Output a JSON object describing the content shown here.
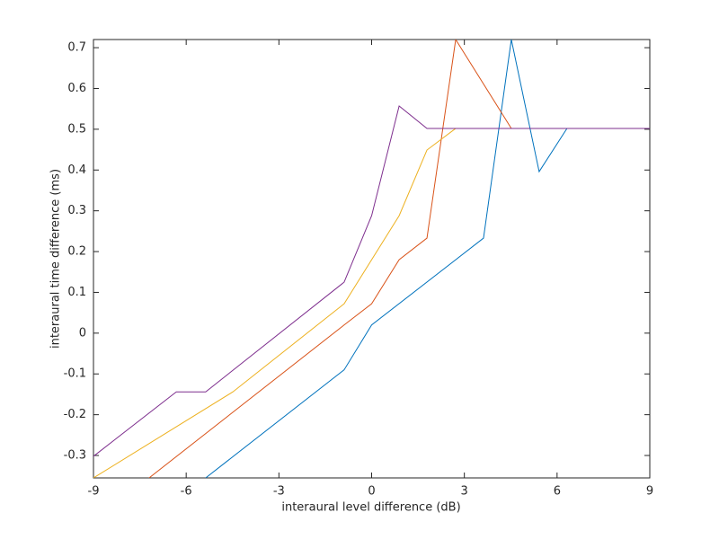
{
  "chart_data": {
    "type": "line",
    "xlabel": "interaural level difference (dB)",
    "ylabel": "interaural time difference (ms)",
    "xlim": [
      -9,
      9
    ],
    "ylim": [
      -0.355,
      0.72
    ],
    "xticks": [
      -9,
      -6,
      -3,
      0,
      3,
      6,
      9
    ],
    "yticks": [
      -0.3,
      -0.2,
      -0.1,
      0,
      0.1,
      0.2,
      0.3,
      0.4,
      0.5,
      0.6,
      0.7
    ],
    "grid": false,
    "series": [
      {
        "color": "#0072BD",
        "x": [
          -5.37,
          -0.89,
          0,
          3.62,
          4.52,
          5.42,
          6.32
        ],
        "values": [
          -0.355,
          -0.09,
          0.02,
          0.233,
          0.72,
          0.396,
          0.502
        ]
      },
      {
        "color": "#D95319",
        "x": [
          -7.2,
          -0.89,
          0,
          0.89,
          1.79,
          2.72,
          4.52
        ],
        "values": [
          -0.355,
          0.02,
          0.072,
          0.18,
          0.233,
          0.72,
          0.502
        ]
      },
      {
        "color": "#EDB120",
        "x": [
          -9,
          -4.49,
          -0.89,
          0.89,
          1.79,
          2.72
        ],
        "values": [
          -0.355,
          -0.144,
          0.072,
          0.288,
          0.449,
          0.502
        ]
      },
      {
        "color": "#7E2F8E",
        "x": [
          -9,
          -6.32,
          -5.37,
          -0.89,
          0,
          0.89,
          1.79,
          9
        ],
        "values": [
          -0.302,
          -0.144,
          -0.144,
          0.125,
          0.288,
          0.557,
          0.502,
          0.502
        ]
      }
    ]
  }
}
